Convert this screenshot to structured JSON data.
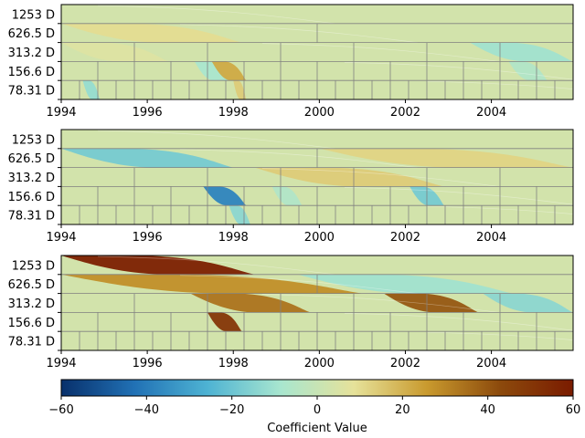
{
  "chart_data": {
    "type": "heatmap",
    "description_note": "",
    "x_axis": {
      "min": 1994,
      "max": 2005.9,
      "ticks": [
        1994,
        1996,
        1998,
        2000,
        2002,
        2004
      ],
      "tick_labels": [
        "1994",
        "1996",
        "1998",
        "2000",
        "2002",
        "2004"
      ]
    },
    "y_axis": {
      "scale": "log",
      "tick_labels": [
        "1253 D",
        "626.5 D",
        "313.2 D",
        "156.6 D",
        "78.31 D"
      ],
      "levels": 5
    },
    "colorbar": {
      "label": "Coefficient Value",
      "min": -60,
      "max": 60,
      "ticks": [
        -60,
        -40,
        -20,
        0,
        20,
        40,
        60
      ],
      "tick_labels": [
        "−60",
        "−40",
        "−20",
        "0",
        "20",
        "40",
        "60"
      ],
      "colors": [
        "#08306b",
        "#2171b5",
        "#4eb3d3",
        "#a8e6cf",
        "#e6e29a",
        "#c99a2e",
        "#8c4a0c",
        "#7a1b00"
      ]
    },
    "background_value": 3,
    "panels": [
      {
        "name": "",
        "features": [
          {
            "level": 1,
            "x0": 1994.0,
            "x1": 1998.2,
            "value": 10
          },
          {
            "level": 2,
            "x0": 1994.0,
            "x1": 1996.5,
            "value": 6
          },
          {
            "level": 2,
            "x0": 2003.5,
            "x1": 2005.9,
            "value": -10
          },
          {
            "level": 3,
            "x0": 1997.1,
            "x1": 1997.9,
            "value": -8
          },
          {
            "level": 3,
            "x0": 1997.5,
            "x1": 1998.3,
            "value": 22
          },
          {
            "level": 3,
            "x0": 2004.4,
            "x1": 2005.3,
            "value": -6
          },
          {
            "level": 4,
            "x0": 1994.5,
            "x1": 1994.9,
            "value": -12
          },
          {
            "level": 4,
            "x0": 1998.0,
            "x1": 1998.3,
            "value": 14
          }
        ]
      },
      {
        "name": "",
        "features": [
          {
            "level": 1,
            "x0": 1994.0,
            "x1": 1998.0,
            "value": -18
          },
          {
            "level": 1,
            "x0": 2000.0,
            "x1": 2005.9,
            "value": 12
          },
          {
            "level": 2,
            "x0": 1998.5,
            "x1": 2002.9,
            "value": 14
          },
          {
            "level": 3,
            "x0": 1997.3,
            "x1": 1998.3,
            "value": -38
          },
          {
            "level": 3,
            "x0": 2002.1,
            "x1": 2002.9,
            "value": -18
          },
          {
            "level": 3,
            "x0": 1998.9,
            "x1": 1999.6,
            "value": -6
          },
          {
            "level": 4,
            "x0": 1997.9,
            "x1": 1998.4,
            "value": -14
          }
        ]
      },
      {
        "name": "",
        "features": [
          {
            "level": 0,
            "x0": 1994.0,
            "x1": 1998.5,
            "value": 58
          },
          {
            "level": 1,
            "x0": 1994.0,
            "x1": 2001.0,
            "value": 28
          },
          {
            "level": 1,
            "x0": 1999.5,
            "x1": 2004.5,
            "value": -10
          },
          {
            "level": 2,
            "x0": 1997.0,
            "x1": 1999.8,
            "value": 34
          },
          {
            "level": 2,
            "x0": 2001.5,
            "x1": 2003.7,
            "value": 40
          },
          {
            "level": 2,
            "x0": 2003.8,
            "x1": 2005.9,
            "value": -14
          },
          {
            "level": 3,
            "x0": 1997.4,
            "x1": 1998.2,
            "value": 50
          }
        ]
      }
    ]
  }
}
